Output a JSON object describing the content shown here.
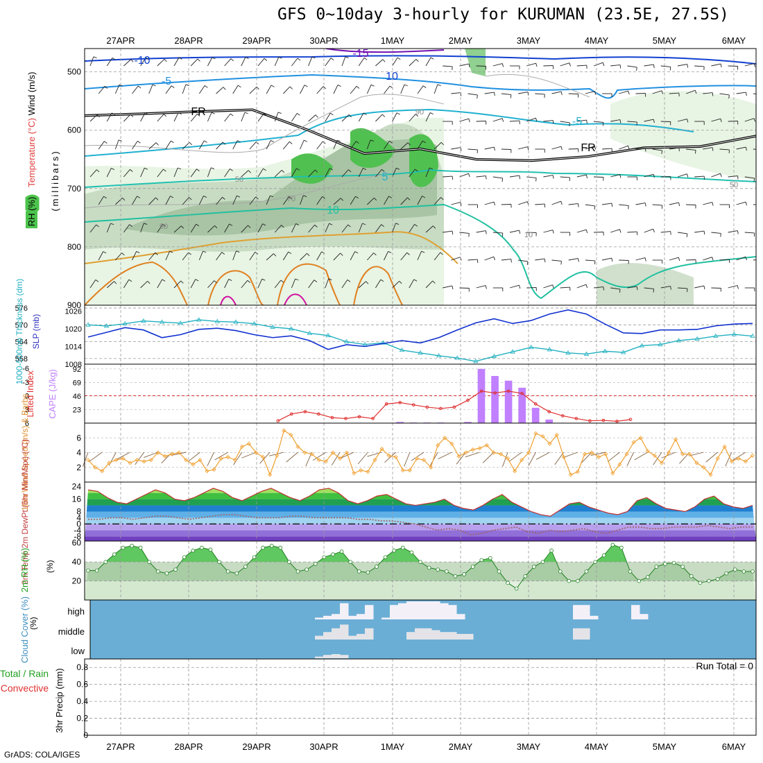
{
  "title": "GFS 0~10day 3-hourly for KURUMAN (23.5E, 27.5S)",
  "credit": "GrADS: COLA/IGES",
  "colors": {
    "temperature_warm": "#e08020",
    "temperature_cold": "#1aa0a0",
    "freezing_line": "#000000",
    "rh_shading": "#4cc44c",
    "slp_line": "#1030d0",
    "thickness_line": "#20b0c0",
    "lifted_index": "#e03030",
    "cape_bars": "#c080ff",
    "wind_speed": "#f0a030",
    "wind_barbs": "#806040",
    "temp_fill": "#20a020",
    "cloud_bg": "#6aaed6",
    "precip_grid": "#888888"
  },
  "chart_data": [
    {
      "type": "area",
      "panel": "upper-air",
      "ylabels": [
        "Wind (m/s)",
        "Temperature (°C)",
        "RH (%)",
        "(millibars)"
      ],
      "x": [
        "27APR",
        "28APR",
        "29APR",
        "30APR",
        "1MAY",
        "2MAY",
        "3MAY",
        "4MAY",
        "5MAY",
        "6MAY"
      ],
      "yticks": [
        500,
        600,
        700,
        800,
        900
      ],
      "ylim": [
        900,
        460
      ],
      "contour_labels": [
        "-15",
        "-10",
        "-5",
        "10",
        "-5",
        "5",
        "10",
        "FR",
        "FR",
        "50",
        "50",
        "70",
        "10",
        "50",
        "90"
      ],
      "freezing_level": [
        575,
        572,
        568,
        565,
        600,
        640,
        632,
        650,
        652,
        645,
        630,
        628,
        610
      ]
    },
    {
      "type": "line",
      "panel": "thickness-slp",
      "ylabel_left": "1000-500mb Thickness (dm)",
      "ylabel_right": "SLP (mb)",
      "yticks_left": [
        558,
        564,
        570,
        576
      ],
      "yticks_right": [
        1008,
        1014,
        1020,
        1026
      ],
      "series": [
        {
          "name": "1000-500mb Thickness (dm)",
          "values": [
            570.0,
            569.6,
            570.4,
            571.4,
            571.0,
            570.6,
            571.8,
            571.2,
            571.0,
            570.4,
            569.2,
            568.6,
            567.0,
            566.2,
            564.0,
            563.0,
            563.6,
            561.0,
            560.0,
            559.0,
            558.2,
            557.0,
            558.8,
            560.4,
            562.0,
            561.2,
            560.0,
            559.6,
            560.6,
            560.2,
            562.6,
            563.0,
            564.4,
            565.0,
            566.0,
            566.6,
            566.0
          ]
        },
        {
          "name": "SLP (mb)",
          "values": [
            1017.2,
            1018.8,
            1020.4,
            1019.6,
            1017.0,
            1018.0,
            1019.8,
            1020.2,
            1019.4,
            1018.0,
            1017.0,
            1017.6,
            1016.0,
            1013.0,
            1014.6,
            1014.0,
            1015.0,
            1016.0,
            1015.2,
            1017.0,
            1019.6,
            1022.0,
            1023.4,
            1021.8,
            1022.8,
            1025.0,
            1026.4,
            1025.0,
            1021.6,
            1018.6,
            1018.4,
            1019.6,
            1019.6,
            1019.8,
            1021.0,
            1021.6,
            1021.8
          ]
        }
      ]
    },
    {
      "type": "bar",
      "panel": "instability",
      "ylabel_left": "Lifted Index",
      "ylabel_right": "CAPE (J/kg)",
      "yticks_left": [
        -6,
        -3,
        0,
        3,
        6
      ],
      "yticks_right": [
        23,
        46,
        69,
        92
      ],
      "series": [
        {
          "name": "CAPE (J/kg)",
          "values": [
            0,
            0,
            0,
            0,
            0,
            0,
            0,
            0,
            0,
            0,
            0,
            0,
            0,
            0,
            0,
            0,
            0,
            0,
            0,
            0,
            0,
            0,
            0,
            2,
            1,
            1,
            1,
            0,
            2,
            92,
            80,
            72,
            60,
            26,
            6,
            0,
            0,
            0,
            0,
            0,
            0,
            0,
            0,
            0,
            0,
            0,
            0,
            0,
            0,
            0
          ]
        },
        {
          "name": "Lifted Index",
          "values": [
            null,
            null,
            null,
            null,
            null,
            null,
            null,
            null,
            null,
            null,
            null,
            null,
            null,
            null,
            5.5,
            4.0,
            3.5,
            4.0,
            4.8,
            5.0,
            4.6,
            5.0,
            1.8,
            1.5,
            2.0,
            2.5,
            2.8,
            2.5,
            1.0,
            -1.0,
            -0.6,
            -1.0,
            -0.5,
            1.8,
            3.5,
            4.4,
            5.0,
            5.5,
            5.4,
            5.6,
            5.2,
            null,
            null,
            null,
            null,
            null,
            null,
            null,
            null,
            null
          ]
        }
      ]
    },
    {
      "type": "line",
      "panel": "surface-wind",
      "ylabel": "10m Wind Speed (m/s) & Barbs",
      "yticks": [
        2,
        4,
        6
      ],
      "series": [
        {
          "name": "10m Wind Speed (m/s)",
          "values": [
            3.0,
            2.0,
            1.5,
            2.6,
            3.0,
            3.2,
            2.6,
            3.0,
            2.8,
            3.0,
            4.0,
            3.5,
            3.8,
            4.0,
            3.0,
            2.4,
            3.0,
            1.5,
            1.7,
            3.2,
            3.4,
            3.0,
            4.8,
            5.2,
            4.0,
            3.4,
            1.0,
            3.6,
            7.0,
            6.4,
            4.8,
            4.0,
            3.8,
            3.0,
            2.8,
            4.0,
            3.2,
            4.0,
            1.2,
            1.6,
            1.4,
            3.0,
            4.5,
            3.6,
            3.4,
            1.6,
            1.6,
            3.2,
            3.0,
            2.0,
            5.0,
            6.0,
            5.2,
            3.5,
            4.0,
            4.4,
            4.6,
            5.0,
            4.0,
            3.8,
            3.2,
            1.5,
            3.0,
            4.0,
            6.6,
            6.2,
            5.2,
            6.4,
            3.4,
            1.0,
            1.4,
            3.8,
            4.0,
            3.4,
            3.8,
            1.2,
            2.4,
            3.8,
            5.4,
            6.0,
            4.2,
            3.6,
            2.6,
            4.0,
            5.8,
            3.8,
            3.8,
            2.6,
            2.0,
            1.0,
            3.2,
            4.8,
            2.8,
            3.2,
            2.8,
            3.6
          ]
        }
      ]
    },
    {
      "type": "area",
      "panel": "surface-temperature",
      "ylabel": "2m Temp 2m DewPt (6hr Min/Max) (°C)",
      "yticks": [
        -8,
        -4,
        0,
        4,
        8,
        16,
        24
      ],
      "series": [
        {
          "name": "2m Temp",
          "values": [
            22,
            21,
            17,
            14,
            13,
            16,
            19,
            22,
            20,
            16,
            15,
            17,
            20,
            23,
            21,
            17,
            15,
            18,
            21,
            23,
            20,
            17,
            15,
            18,
            22,
            23,
            20,
            15,
            13,
            15,
            18,
            19,
            16,
            13,
            12,
            13,
            14,
            16,
            12,
            10,
            9,
            12,
            16,
            19,
            14,
            11,
            8,
            6,
            5,
            9,
            13,
            14,
            11,
            9,
            7,
            6,
            8,
            15,
            17,
            13,
            10,
            9,
            8,
            11,
            16,
            18,
            13,
            11,
            10,
            12
          ]
        },
        {
          "name": "2m DewPt",
          "values": [
            3,
            3,
            4,
            4,
            3,
            4,
            5,
            5,
            4,
            3,
            4,
            5,
            6,
            6,
            5,
            4,
            4,
            4,
            5,
            5,
            4,
            4,
            4,
            4,
            3,
            3,
            2,
            2,
            1,
            0,
            -2,
            -4,
            -3,
            -4,
            -7,
            -6,
            -4,
            -3,
            -2,
            -5,
            -6,
            -4,
            -5,
            -4,
            -3,
            -5,
            -6,
            -4,
            -2,
            -2,
            -3,
            -3,
            -2,
            -2,
            -2,
            -1,
            -2,
            -3,
            -2,
            -2
          ]
        }
      ]
    },
    {
      "type": "area",
      "panel": "surface-rh",
      "ylabel": "2m RH (%)",
      "yticks": [
        20,
        40,
        60
      ],
      "series": [
        {
          "name": "2m RH",
          "values": [
            31,
            31,
            40,
            48,
            55,
            57,
            55,
            40,
            30,
            28,
            32,
            45,
            52,
            55,
            53,
            40,
            30,
            28,
            35,
            45,
            55,
            57,
            55,
            40,
            30,
            32,
            38,
            45,
            48,
            51,
            40,
            30,
            29,
            35,
            45,
            52,
            55,
            50,
            40,
            34,
            32,
            30,
            25,
            27,
            35,
            42,
            44,
            30,
            18,
            12,
            25,
            35,
            40,
            52,
            30,
            20,
            20,
            30,
            40,
            47,
            58,
            55,
            30,
            20,
            24,
            35,
            38,
            39,
            35,
            25,
            18,
            20,
            22,
            28,
            32,
            30,
            30
          ]
        }
      ]
    },
    {
      "type": "heatmap",
      "panel": "cloud-cover",
      "ylabel": "Cloud Cover (%)",
      "yticks": [
        "high",
        "middle",
        "low"
      ],
      "series": [
        {
          "name": "high",
          "values": [
            0,
            0,
            0,
            0,
            0,
            0,
            0,
            0,
            0,
            0,
            0,
            0,
            0,
            0,
            0,
            0,
            0,
            0,
            0,
            0,
            0,
            0,
            0,
            0,
            0,
            0,
            0,
            10,
            20,
            30,
            90,
            20,
            30,
            80,
            0,
            10,
            80,
            90,
            100,
            100,
            100,
            100,
            90,
            80,
            30,
            0,
            0,
            0,
            0,
            0,
            0,
            0,
            0,
            0,
            0,
            0,
            0,
            0,
            80,
            80,
            20,
            0,
            0,
            0,
            0,
            80,
            30,
            0,
            0,
            0,
            0,
            0,
            0,
            0,
            0,
            0,
            0,
            0,
            0,
            0
          ]
        },
        {
          "name": "middle",
          "values": [
            0,
            0,
            0,
            0,
            0,
            0,
            0,
            0,
            0,
            0,
            0,
            0,
            0,
            0,
            0,
            0,
            0,
            0,
            0,
            0,
            0,
            0,
            0,
            0,
            0,
            0,
            0,
            20,
            40,
            60,
            80,
            20,
            30,
            60,
            0,
            0,
            0,
            0,
            40,
            60,
            60,
            50,
            40,
            40,
            30,
            30,
            0,
            0,
            0,
            0,
            0,
            0,
            0,
            0,
            0,
            0,
            0,
            0,
            60,
            60,
            0,
            0,
            0,
            0,
            0,
            0,
            0,
            0,
            0,
            0,
            0,
            0,
            0,
            0,
            0,
            0,
            0,
            0,
            0,
            0
          ]
        },
        {
          "name": "low",
          "values": [
            0,
            0,
            0,
            0,
            0,
            0,
            0,
            0,
            0,
            0,
            0,
            0,
            0,
            0,
            0,
            0,
            0,
            0,
            0,
            0,
            0,
            0,
            0,
            0,
            0,
            0,
            0,
            10,
            20,
            25,
            20,
            0,
            0,
            0,
            0,
            0,
            0,
            0,
            0,
            0,
            0,
            0,
            0,
            0,
            0,
            0,
            0,
            0,
            0,
            0,
            0,
            0,
            0,
            0,
            0,
            0,
            0,
            0,
            0,
            0,
            0,
            0,
            0,
            0,
            0,
            0,
            0,
            0,
            0,
            0,
            0,
            0,
            0,
            0,
            0,
            0,
            0,
            0,
            0,
            0
          ]
        }
      ]
    },
    {
      "type": "bar",
      "panel": "precipitation",
      "ylabel": "3hr Precip (mm)",
      "legend": [
        "Total / Rain",
        "Convective"
      ],
      "annotation": "Run Total = 0",
      "yticks": [
        "0",
        "0.2",
        "0.4",
        "0.6",
        "0.8"
      ],
      "ylim": [
        0,
        0.9
      ],
      "series": [
        {
          "name": "Total / Rain",
          "values": [
            0,
            0,
            0,
            0,
            0,
            0,
            0,
            0,
            0,
            0
          ]
        },
        {
          "name": "Convective",
          "values": [
            0,
            0,
            0,
            0,
            0,
            0,
            0,
            0,
            0,
            0
          ]
        }
      ]
    }
  ]
}
